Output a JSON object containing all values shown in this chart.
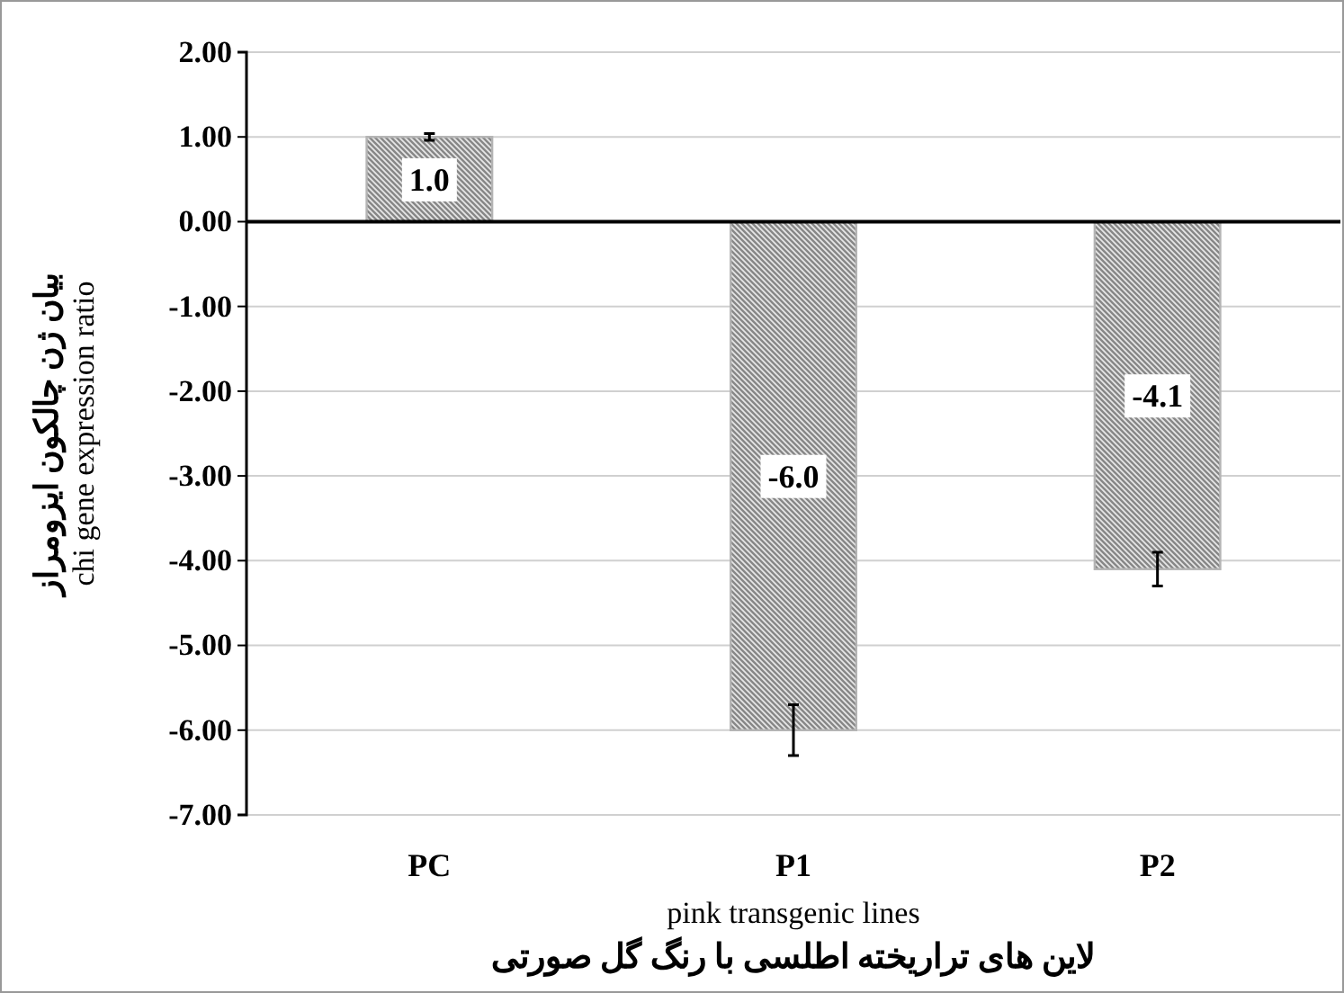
{
  "chart_data": {
    "type": "bar",
    "xlabel": "pink transgenic lines\nلاین های تراریخته اطلسی با رنگ گل صورتی",
    "ylabel": "بیان ژن چالکون ایزومراز\nchi gene expression ratio",
    "categories": [
      "PC",
      "P1",
      "P2"
    ],
    "values": [
      1.0,
      -6.0,
      -4.1
    ],
    "errors": [
      0.04,
      0.3,
      0.2
    ],
    "value_labels": [
      "1.0",
      "-6.0",
      "-4.1"
    ],
    "color": "#b4b4b4",
    "ylim": [
      -7,
      2
    ],
    "yticks": [
      {
        "value": 2,
        "label": "2.00"
      },
      {
        "value": 1,
        "label": "1.00"
      },
      {
        "value": 0,
        "label": "0.00"
      },
      {
        "value": -1,
        "label": "-1.00"
      },
      {
        "value": -2,
        "label": "-2.00"
      },
      {
        "value": -3,
        "label": "-3.00"
      },
      {
        "value": -4,
        "label": "-4.00"
      },
      {
        "value": -5,
        "label": "-5.00"
      },
      {
        "value": -6,
        "label": "-6.00"
      },
      {
        "value": -7,
        "label": "-7.00"
      }
    ],
    "grid": "y"
  }
}
